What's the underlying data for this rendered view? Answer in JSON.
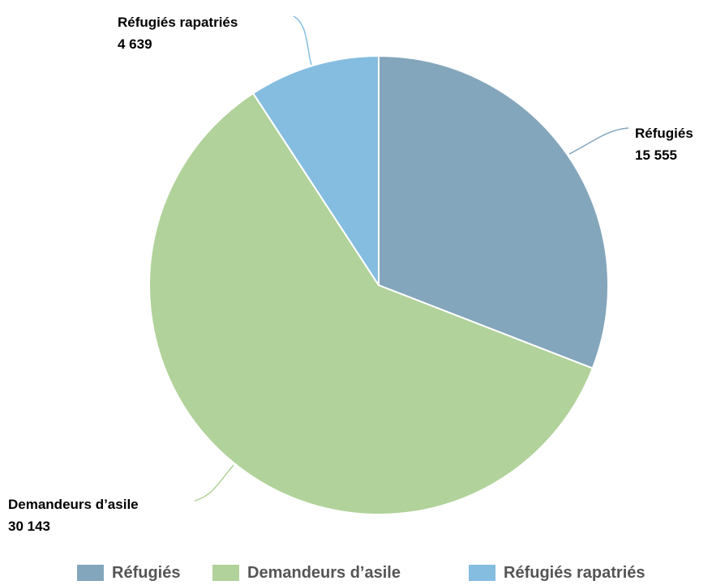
{
  "chart_data": {
    "type": "pie",
    "categories": [
      "Réfugiés",
      "Demandeurs d’asile",
      "Réfugiés rapatriés"
    ],
    "values": [
      15555,
      30143,
      4639
    ],
    "value_labels": [
      "15 555",
      "30 143",
      "4 639"
    ],
    "colors": [
      "#84a6bc",
      "#b1d29a",
      "#85bde0"
    ],
    "legend_position": "bottom"
  }
}
